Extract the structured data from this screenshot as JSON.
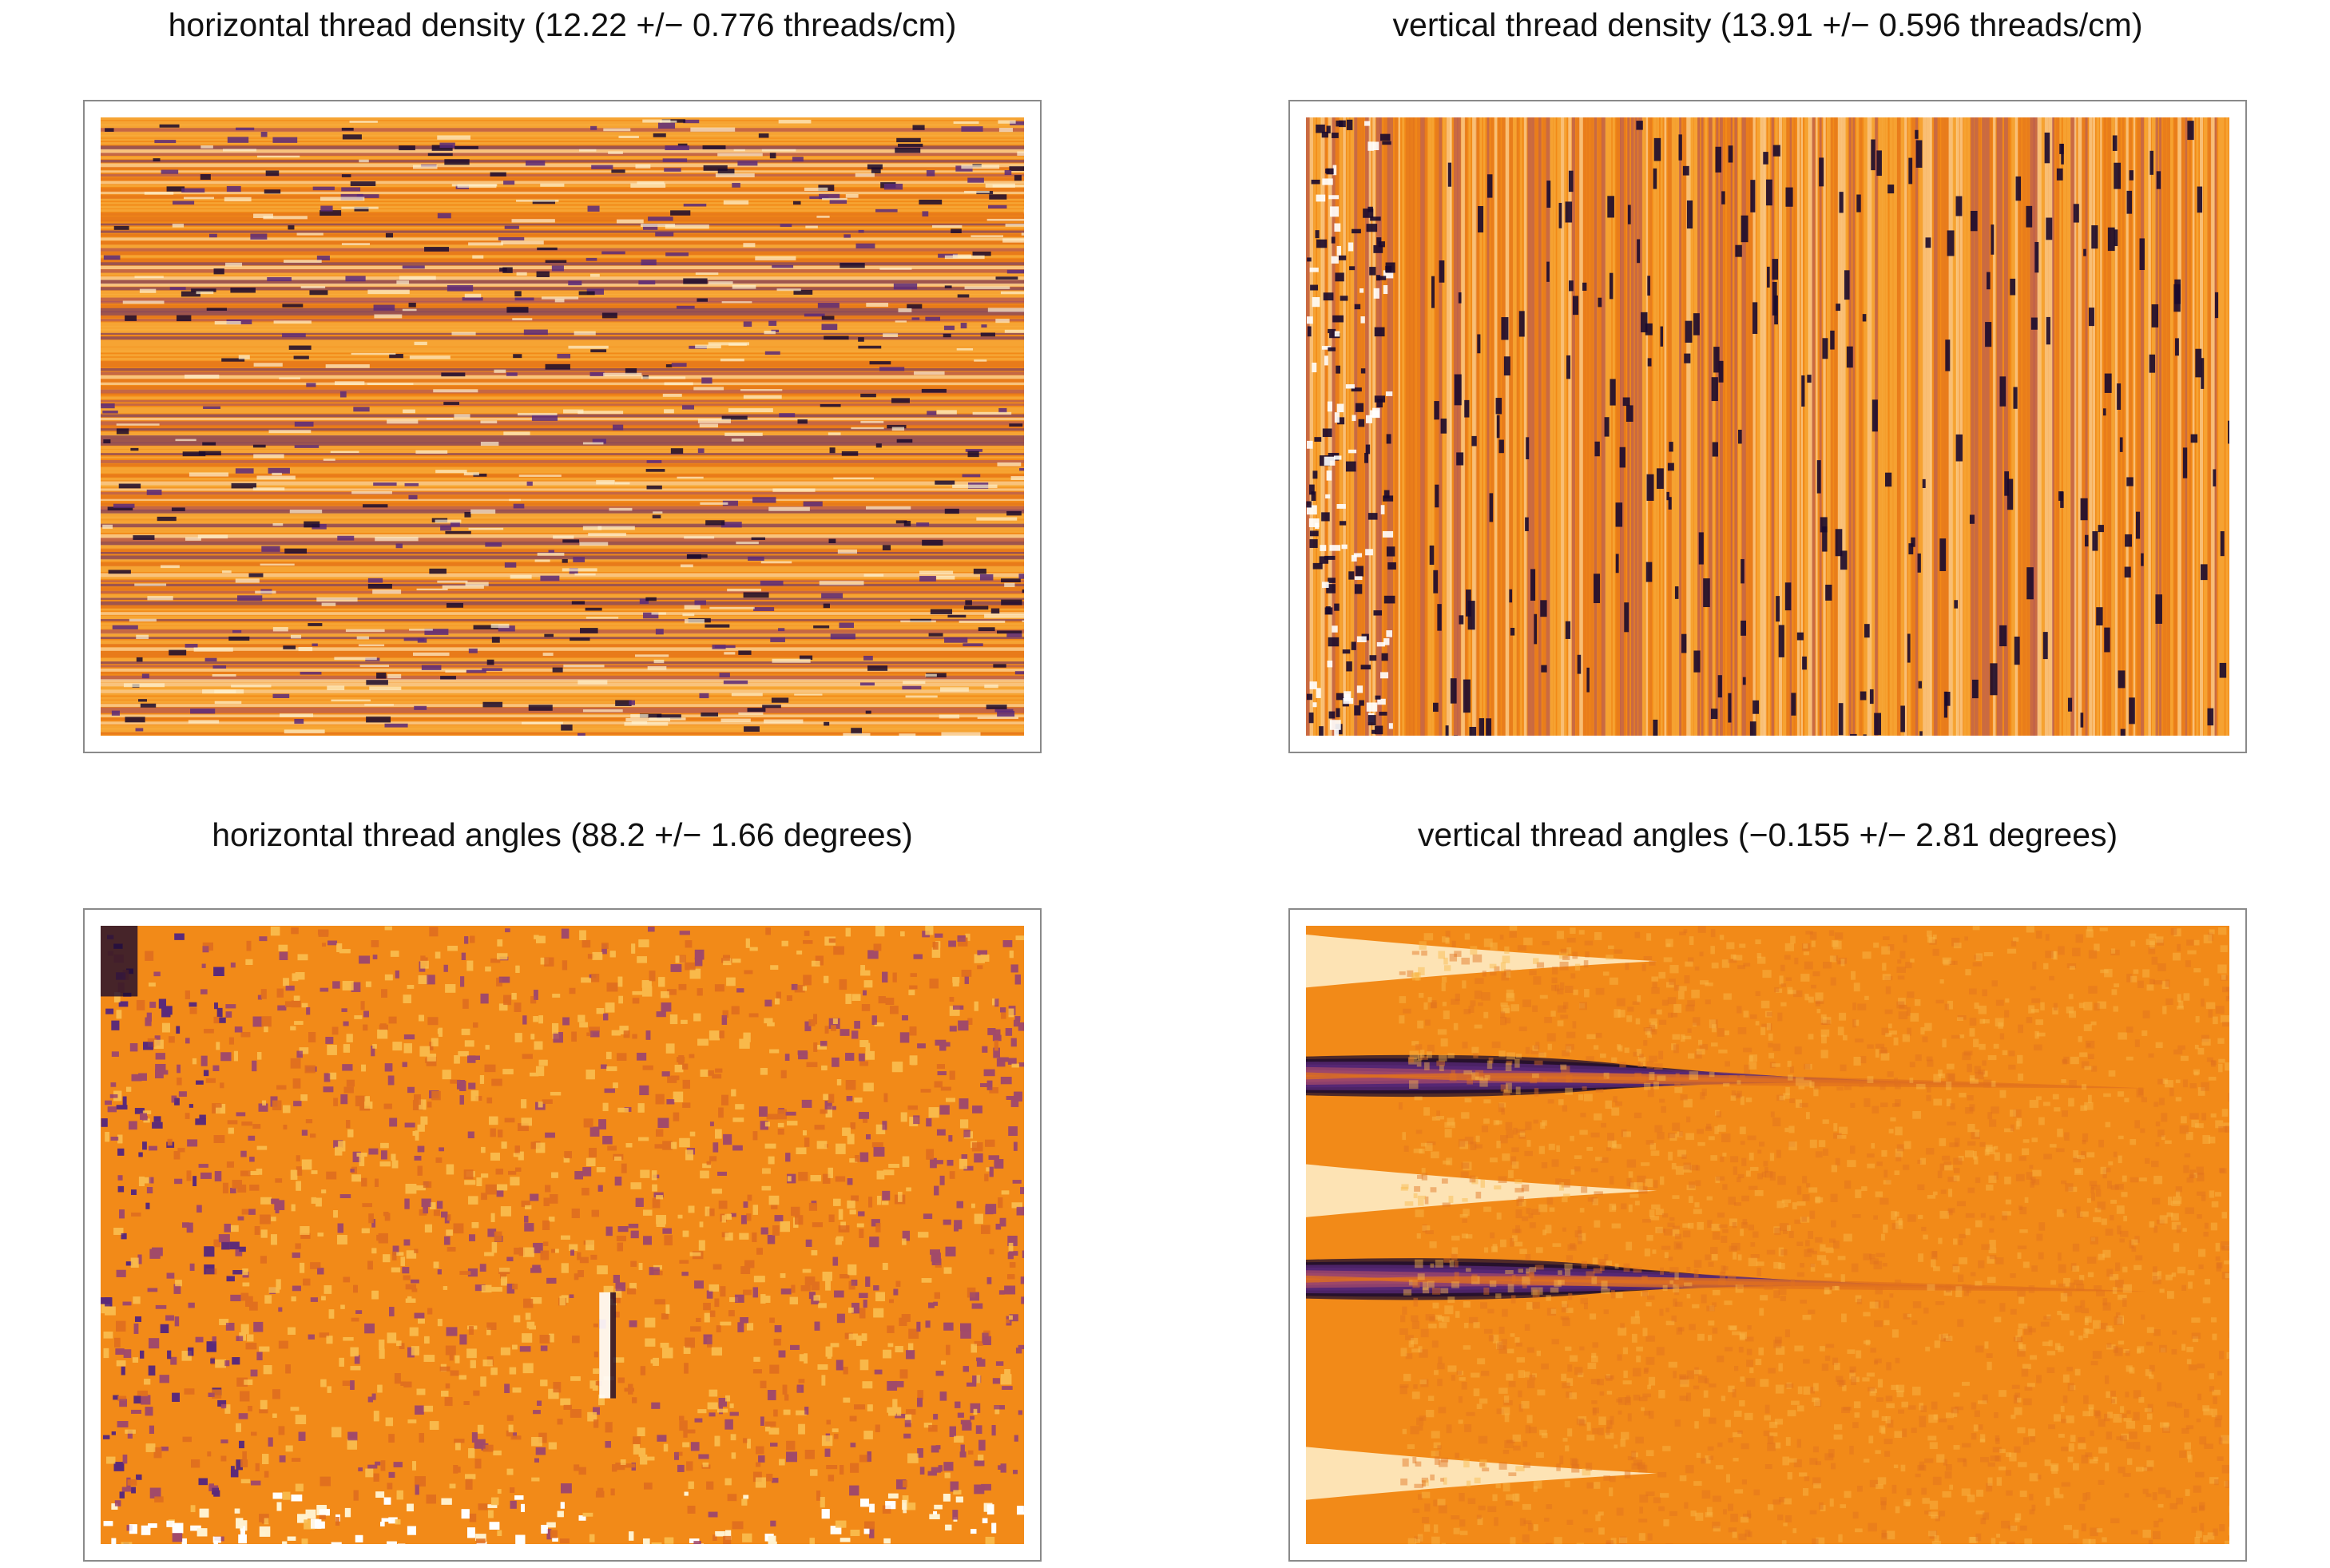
{
  "chart_data": [
    {
      "type": "heatmap",
      "title": "horizontal thread density (12.22 +/− 0.776 threads/cm)",
      "colormap": [
        "#1a0a2e",
        "#5a2a7a",
        "#a14a6a",
        "#e0701e",
        "#f28a18",
        "#f9b94a",
        "#fff2d0",
        "#ffffff"
      ],
      "dominant_color": "#f28a18",
      "pattern": "horizontal-stripes"
    },
    {
      "type": "heatmap",
      "title": "vertical thread density (13.91 +/− 0.596 threads/cm)",
      "colormap": [
        "#1a0a2e",
        "#5a2a7a",
        "#a14a6a",
        "#e0701e",
        "#f28a18",
        "#f9b94a",
        "#fff2d0",
        "#ffffff"
      ],
      "dominant_color": "#f28a18",
      "pattern": "vertical-stripes"
    },
    {
      "type": "heatmap",
      "title": "horizontal thread angles (88.2 +/− 1.66 degrees)",
      "colormap": [
        "#1a0a2e",
        "#5a2a7a",
        "#a14a6a",
        "#e0701e",
        "#f28a18",
        "#f9b94a",
        "#fff2d0",
        "#ffffff"
      ],
      "dominant_color": "#f28a18",
      "pattern": "speckle"
    },
    {
      "type": "heatmap",
      "title": "vertical thread angles (−0.155 +/− 2.81 degrees)",
      "colormap": [
        "#1a0a2e",
        "#5a2a7a",
        "#a14a6a",
        "#e0701e",
        "#f28a18",
        "#f9b94a",
        "#fff2d0",
        "#ffffff"
      ],
      "dominant_color": "#f28a18",
      "pattern": "horizontal-bands"
    }
  ]
}
